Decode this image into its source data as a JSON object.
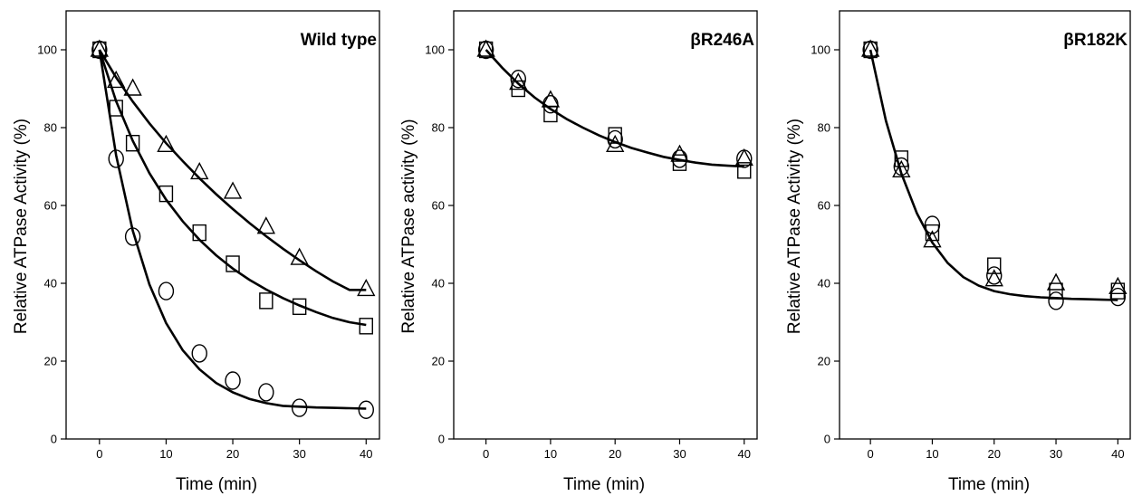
{
  "chart_data": [
    {
      "type": "scatter",
      "title": "Wild type",
      "xlabel": "Time (min)",
      "ylabel": "Relative ATPase Activity (%)",
      "xlim": [
        -5,
        42
      ],
      "ylim": [
        0,
        110
      ],
      "xticks": [
        0,
        10,
        20,
        30,
        40
      ],
      "yticks": [
        0,
        20,
        40,
        60,
        80,
        100
      ],
      "grid": false,
      "series": [
        {
          "marker": "triangle",
          "x": [
            0,
            2.5,
            5,
            10,
            15,
            20,
            25,
            30,
            40
          ],
          "y": [
            100,
            92,
            90,
            75.5,
            68.5,
            63.5,
            54.5,
            46.5,
            38.5
          ]
        },
        {
          "marker": "square",
          "x": [
            0,
            2.5,
            5,
            10,
            15,
            20,
            25,
            30,
            40
          ],
          "y": [
            100,
            85,
            76,
            63,
            53,
            45,
            35.5,
            34,
            29
          ]
        },
        {
          "marker": "circle",
          "x": [
            0,
            2.5,
            5,
            10,
            15,
            20,
            25,
            30,
            40
          ],
          "y": [
            100,
            72,
            52,
            38,
            22,
            15,
            12,
            8,
            7.5
          ]
        }
      ],
      "fits": [
        {
          "x": [
            0,
            2.5,
            5,
            7.5,
            10,
            12.5,
            15,
            17.5,
            20,
            22.5,
            25,
            27.5,
            30,
            32.5,
            35,
            37.5,
            40
          ],
          "y": [
            100,
            92.9,
            86.7,
            81.1,
            76.0,
            71.4,
            67.0,
            62.9,
            59.1,
            55.5,
            52.1,
            48.9,
            45.9,
            43.1,
            40.5,
            38.3,
            38.3
          ]
        },
        {
          "x": [
            0,
            2.5,
            5,
            7.5,
            10,
            12.5,
            15,
            17.5,
            20,
            22.5,
            25,
            27.5,
            30,
            32.5,
            35,
            37.5,
            40
          ],
          "y": [
            100,
            86.8,
            76.6,
            68.3,
            61.5,
            55.9,
            51.2,
            47.2,
            43.8,
            40.9,
            38.4,
            36.2,
            34.3,
            32.6,
            31.1,
            30.0,
            29.3
          ]
        },
        {
          "x": [
            0,
            2.5,
            5,
            7.5,
            10,
            12.5,
            15,
            17.5,
            20,
            22.5,
            25,
            27.5,
            30,
            32.5,
            35,
            37.5,
            40
          ],
          "y": [
            100,
            72.9,
            53.5,
            39.7,
            29.8,
            22.8,
            17.9,
            14.4,
            12.0,
            10.3,
            9.2,
            8.5,
            8.3,
            8.1,
            8.0,
            7.9,
            7.8
          ]
        }
      ]
    },
    {
      "type": "scatter",
      "title": "βR246A",
      "xlabel": "Time (min)",
      "ylabel": "Relative ATPase activity (%)",
      "xlim": [
        -5,
        42
      ],
      "ylim": [
        0,
        110
      ],
      "xticks": [
        0,
        10,
        20,
        30,
        40
      ],
      "yticks": [
        0,
        20,
        40,
        60,
        80,
        100
      ],
      "grid": false,
      "series": [
        {
          "marker": "triangle",
          "x": [
            0,
            5,
            10,
            20,
            30,
            40
          ],
          "y": [
            100,
            91.5,
            87,
            75.5,
            73,
            72
          ]
        },
        {
          "marker": "square",
          "x": [
            0,
            5,
            10,
            20,
            30,
            40
          ],
          "y": [
            100,
            90,
            83.5,
            78,
            71,
            69
          ]
        },
        {
          "marker": "circle",
          "x": [
            0,
            5,
            10,
            20,
            30,
            40
          ],
          "y": [
            100,
            92.5,
            86,
            77,
            72,
            72
          ]
        }
      ],
      "fits": [
        {
          "x": [
            0,
            2.5,
            5,
            7.5,
            10,
            12.5,
            15,
            17.5,
            20,
            22.5,
            25,
            27.5,
            30,
            32.5,
            35,
            37.5,
            40
          ],
          "y": [
            100,
            95.4,
            91.3,
            87.8,
            84.8,
            82.2,
            80.0,
            78.0,
            76.3,
            74.8,
            73.6,
            72.5,
            71.7,
            71.0,
            70.5,
            70.2,
            70.0
          ]
        }
      ]
    },
    {
      "type": "scatter",
      "title": "βR182K",
      "xlabel": "Time (min)",
      "ylabel": "Relative ATPase Activity (%)",
      "xlim": [
        -5,
        42
      ],
      "ylim": [
        0,
        110
      ],
      "xticks": [
        0,
        10,
        20,
        30,
        40
      ],
      "yticks": [
        0,
        20,
        40,
        60,
        80,
        100
      ],
      "grid": false,
      "series": [
        {
          "marker": "triangle",
          "x": [
            0,
            5,
            10,
            20,
            30,
            40
          ],
          "y": [
            100,
            69,
            51,
            41,
            40,
            39
          ]
        },
        {
          "marker": "square",
          "x": [
            0,
            5,
            10,
            20,
            30,
            40
          ],
          "y": [
            100,
            72,
            53,
            44.5,
            38,
            38
          ]
        },
        {
          "marker": "circle",
          "x": [
            0,
            5,
            10,
            20,
            30,
            40
          ],
          "y": [
            100,
            70,
            55,
            42,
            35.5,
            36.5
          ]
        }
      ],
      "fits": [
        {
          "x": [
            0,
            2.5,
            5,
            7.5,
            10,
            12.5,
            15,
            17.5,
            20,
            22.5,
            25,
            27.5,
            30,
            32.5,
            35,
            37.5,
            40
          ],
          "y": [
            100,
            81.8,
            68.2,
            58.0,
            50.5,
            45.2,
            41.6,
            39.4,
            38.0,
            37.2,
            36.7,
            36.4,
            36.2,
            36.0,
            35.9,
            35.8,
            35.7
          ]
        }
      ]
    }
  ]
}
